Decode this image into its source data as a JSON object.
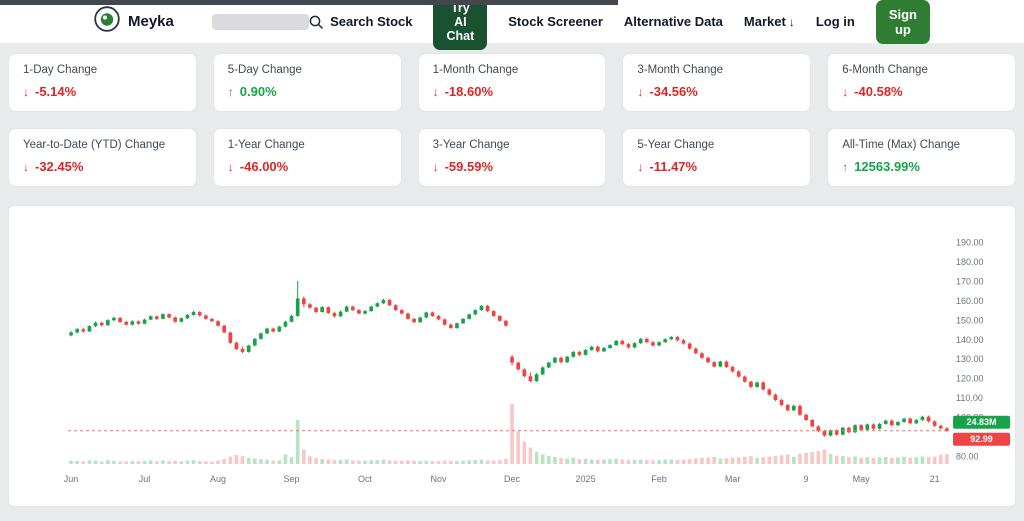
{
  "nav": {
    "brand": "Meyka",
    "search_label": "Search Stock",
    "try_ai_chat": "Try AI Chat",
    "links": [
      "Stock Screener",
      "Alternative Data"
    ],
    "market": "Market",
    "market_arrow": "↓",
    "login": "Log in",
    "signup": "Sign up"
  },
  "stats": {
    "row1": [
      {
        "label": "1-Day Change",
        "arrow": "↓",
        "value": "-5.14%",
        "direction": "down"
      },
      {
        "label": "5-Day Change",
        "arrow": "↑",
        "value": "0.90%",
        "direction": "up"
      },
      {
        "label": "1-Month Change",
        "arrow": "↓",
        "value": "-18.60%",
        "direction": "down"
      },
      {
        "label": "3-Month Change",
        "arrow": "↓",
        "value": "-34.56%",
        "direction": "down"
      },
      {
        "label": "6-Month Change",
        "arrow": "↓",
        "value": "-40.58%",
        "direction": "down"
      }
    ],
    "row2": [
      {
        "label": "Year-to-Date (YTD) Change",
        "arrow": "↓",
        "value": "-32.45%",
        "direction": "down"
      },
      {
        "label": "1-Year Change",
        "arrow": "↓",
        "value": "-46.00%",
        "direction": "down"
      },
      {
        "label": "3-Year Change",
        "arrow": "↓",
        "value": "-59.59%",
        "direction": "down"
      },
      {
        "label": "5-Year Change",
        "arrow": "↓",
        "value": "-11.47%",
        "direction": "down"
      },
      {
        "label": "All-Time (Max) Change",
        "arrow": "↑",
        "value": "12563.99%",
        "direction": "up"
      }
    ]
  },
  "colors": {
    "up": "#16a34a",
    "down_text": "#dc2626",
    "down_candle": "#ef4444",
    "chat_button": "#1a5130",
    "signup_button": "#2e7d32"
  },
  "chart_data": {
    "type": "candlestick",
    "title": "",
    "price_label": "92.99",
    "volume_label": "24.83M",
    "up_color": "#16a34a",
    "down_color": "#ef4444",
    "y_ticks": [
      190,
      180,
      170,
      160,
      150,
      140,
      130,
      120,
      110,
      100,
      90,
      80
    ],
    "x_ticks": [
      {
        "label": "Jun",
        "i": 0
      },
      {
        "label": "Jul",
        "i": 12
      },
      {
        "label": "Aug",
        "i": 24
      },
      {
        "label": "Sep",
        "i": 36
      },
      {
        "label": "Oct",
        "i": 48
      },
      {
        "label": "Nov",
        "i": 60
      },
      {
        "label": "Dec",
        "i": 72
      },
      {
        "label": "2025",
        "i": 84
      },
      {
        "label": "Feb",
        "i": 96
      },
      {
        "label": "Mar",
        "i": 108
      },
      {
        "label": "9",
        "i": 120
      },
      {
        "label": "May",
        "i": 129
      },
      {
        "label": "21",
        "i": 141
      }
    ],
    "candles": [
      [
        142.0,
        144.2,
        141.5,
        143.5,
        8.2
      ],
      [
        143.5,
        145.9,
        143.0,
        145.2,
        7.5
      ],
      [
        145.2,
        145.8,
        143.4,
        144.0,
        6.8
      ],
      [
        144.0,
        147.3,
        143.8,
        146.8,
        9.1
      ],
      [
        146.8,
        149.1,
        146.2,
        148.5,
        8.4
      ],
      [
        148.5,
        149.0,
        146.6,
        147.2,
        6.2
      ],
      [
        147.2,
        150.3,
        146.9,
        149.8,
        9.6
      ],
      [
        149.8,
        151.6,
        149.2,
        151.0,
        8.0
      ],
      [
        151.0,
        151.5,
        148.4,
        148.9,
        6.9
      ],
      [
        148.9,
        149.6,
        146.9,
        147.5,
        6.1
      ],
      [
        147.5,
        149.8,
        147.1,
        149.2,
        7.3
      ],
      [
        149.2,
        149.7,
        147.5,
        148.0,
        6.6
      ],
      [
        148.0,
        150.6,
        147.7,
        150.1,
        7.8
      ],
      [
        150.1,
        152.3,
        149.8,
        151.8,
        8.9
      ],
      [
        151.8,
        152.2,
        149.9,
        150.5,
        6.7
      ],
      [
        150.5,
        153.4,
        150.2,
        152.9,
        9.4
      ],
      [
        152.9,
        153.3,
        150.7,
        151.2,
        7.2
      ],
      [
        151.2,
        151.7,
        148.5,
        149.0,
        8.1
      ],
      [
        149.0,
        151.3,
        148.6,
        150.8,
        7.0
      ],
      [
        150.8,
        153.0,
        150.4,
        152.5,
        8.6
      ],
      [
        152.5,
        154.6,
        152.1,
        154.0,
        9.8
      ],
      [
        154.0,
        154.4,
        151.7,
        152.2,
        7.7
      ],
      [
        152.2,
        152.8,
        150.1,
        150.5,
        6.4
      ],
      [
        150.5,
        151.0,
        148.8,
        149.3,
        6.0
      ],
      [
        149.3,
        149.8,
        146.5,
        147.0,
        8.8
      ],
      [
        147.0,
        147.5,
        143.0,
        143.5,
        12.4
      ],
      [
        143.5,
        144.0,
        137.6,
        138.2,
        18.6
      ],
      [
        138.2,
        138.8,
        134.4,
        135.0,
        22.5
      ],
      [
        135.0,
        136.2,
        132.8,
        133.5,
        19.8
      ],
      [
        133.5,
        137.2,
        133.1,
        136.8,
        15.2
      ],
      [
        136.8,
        140.7,
        136.4,
        140.2,
        13.6
      ],
      [
        140.2,
        143.5,
        139.8,
        143.0,
        11.8
      ],
      [
        143.0,
        146.0,
        142.6,
        145.5,
        10.9
      ],
      [
        145.5,
        146.0,
        143.5,
        144.0,
        8.3
      ],
      [
        144.0,
        147.0,
        143.7,
        146.5,
        9.2
      ],
      [
        146.5,
        149.5,
        146.1,
        149.0,
        24.0
      ],
      [
        149.0,
        152.6,
        148.7,
        152.0,
        17.5
      ],
      [
        152.0,
        170.0,
        151.5,
        161.0,
        110.0
      ],
      [
        161.0,
        162.0,
        156.4,
        158.0,
        35.6
      ],
      [
        158.0,
        158.6,
        155.6,
        156.2,
        19.4
      ],
      [
        156.2,
        156.8,
        153.4,
        154.0,
        14.8
      ],
      [
        154.0,
        157.1,
        153.7,
        156.5,
        12.3
      ],
      [
        156.5,
        157.0,
        153.0,
        153.5,
        11.2
      ],
      [
        153.5,
        154.1,
        151.2,
        151.8,
        9.7
      ],
      [
        151.8,
        154.8,
        151.4,
        154.2,
        10.5
      ],
      [
        154.2,
        157.4,
        153.9,
        156.8,
        11.4
      ],
      [
        156.8,
        157.3,
        154.5,
        155.0,
        8.9
      ],
      [
        155.0,
        155.6,
        152.8,
        153.2,
        8.1
      ],
      [
        153.2,
        155.1,
        152.8,
        154.5,
        8.6
      ],
      [
        154.5,
        157.3,
        154.1,
        156.8,
        9.5
      ],
      [
        156.8,
        159.1,
        156.4,
        158.5,
        10.2
      ],
      [
        158.5,
        160.8,
        158.1,
        160.2,
        11.1
      ],
      [
        160.2,
        160.7,
        157.0,
        157.5,
        9.2
      ],
      [
        157.5,
        158.0,
        154.5,
        155.0,
        8.4
      ],
      [
        155.0,
        155.6,
        152.7,
        153.2,
        7.6
      ],
      [
        153.2,
        153.8,
        150.0,
        150.5,
        8.9
      ],
      [
        150.5,
        151.1,
        148.3,
        148.8,
        8.0
      ],
      [
        148.8,
        151.7,
        148.4,
        151.2,
        7.2
      ],
      [
        151.2,
        154.2,
        150.8,
        153.8,
        8.3
      ],
      [
        153.8,
        154.3,
        151.5,
        152.0,
        6.9
      ],
      [
        152.0,
        152.6,
        149.7,
        150.2,
        7.7
      ],
      [
        150.2,
        150.8,
        147.0,
        147.5,
        8.6
      ],
      [
        147.5,
        148.1,
        145.3,
        145.8,
        8.0
      ],
      [
        145.8,
        148.6,
        145.4,
        148.2,
        7.3
      ],
      [
        148.2,
        150.9,
        147.8,
        150.5,
        8.2
      ],
      [
        150.5,
        153.2,
        150.1,
        152.8,
        9.1
      ],
      [
        152.8,
        155.4,
        152.4,
        155.0,
        10.0
      ],
      [
        155.0,
        157.6,
        154.6,
        157.2,
        10.8
      ],
      [
        157.2,
        157.7,
        154.0,
        154.5,
        8.9
      ],
      [
        154.5,
        155.0,
        151.5,
        152.0,
        8.1
      ],
      [
        152.0,
        152.5,
        149.0,
        149.5,
        9.7
      ],
      [
        149.5,
        150.0,
        146.5,
        147.0,
        13.2
      ],
      [
        131.0,
        132.0,
        126.5,
        128.0,
        150.0
      ],
      [
        128.0,
        128.6,
        123.9,
        124.5,
        82.0
      ],
      [
        124.5,
        125.1,
        120.4,
        121.0,
        56.0
      ],
      [
        121.0,
        123.0,
        117.9,
        118.5,
        41.0
      ],
      [
        118.5,
        122.6,
        118.1,
        122.0,
        30.5
      ],
      [
        122.0,
        126.1,
        121.6,
        125.5,
        24.2
      ],
      [
        125.5,
        128.5,
        125.1,
        128.0,
        20.1
      ],
      [
        128.0,
        131.0,
        127.6,
        130.5,
        17.5
      ],
      [
        130.5,
        131.1,
        127.6,
        128.2,
        14.9
      ],
      [
        128.2,
        131.5,
        127.8,
        131.0,
        13.6
      ],
      [
        131.0,
        134.0,
        130.6,
        133.5,
        15.8
      ],
      [
        133.5,
        134.1,
        131.4,
        132.0,
        12.1
      ],
      [
        132.0,
        135.0,
        131.6,
        134.5,
        12.9
      ],
      [
        134.5,
        136.7,
        134.1,
        136.2,
        11.7
      ],
      [
        136.2,
        136.8,
        133.2,
        133.8,
        10.4
      ],
      [
        133.8,
        136.0,
        133.4,
        135.5,
        11.2
      ],
      [
        135.5,
        137.5,
        135.1,
        137.0,
        12.0
      ],
      [
        137.0,
        139.7,
        136.6,
        139.2,
        13.1
      ],
      [
        139.2,
        139.8,
        136.9,
        137.5,
        10.9
      ],
      [
        137.5,
        138.1,
        135.2,
        135.8,
        9.8
      ],
      [
        135.8,
        138.5,
        135.4,
        138.0,
        10.6
      ],
      [
        138.0,
        140.7,
        137.6,
        140.2,
        11.5
      ],
      [
        140.2,
        140.8,
        137.9,
        138.5,
        9.9
      ],
      [
        138.5,
        139.1,
        136.2,
        136.8,
        9.0
      ],
      [
        136.8,
        139.0,
        136.4,
        138.5,
        10.1
      ],
      [
        138.5,
        140.5,
        138.1,
        140.0,
        10.9
      ],
      [
        140.0,
        141.7,
        139.6,
        141.2,
        11.8
      ],
      [
        141.2,
        141.8,
        138.9,
        139.5,
        10.2
      ],
      [
        139.5,
        140.1,
        137.2,
        137.8,
        11.0
      ],
      [
        137.8,
        138.4,
        134.6,
        135.2,
        12.4
      ],
      [
        135.2,
        135.8,
        132.2,
        132.8,
        13.7
      ],
      [
        132.8,
        133.4,
        129.9,
        130.5,
        14.9
      ],
      [
        130.5,
        131.1,
        127.6,
        128.2,
        16.2
      ],
      [
        128.2,
        128.8,
        125.4,
        126.0,
        17.6
      ],
      [
        126.0,
        129.0,
        125.6,
        128.5,
        13.4
      ],
      [
        128.5,
        129.1,
        125.2,
        125.8,
        14.5
      ],
      [
        125.8,
        126.4,
        122.9,
        123.5,
        15.7
      ],
      [
        123.5,
        124.1,
        120.2,
        120.8,
        16.9
      ],
      [
        120.8,
        121.4,
        117.6,
        118.2,
        18.2
      ],
      [
        118.2,
        118.8,
        114.9,
        115.5,
        19.6
      ],
      [
        115.5,
        118.3,
        115.1,
        117.8,
        15.4
      ],
      [
        117.8,
        118.4,
        113.6,
        114.2,
        17.3
      ],
      [
        114.2,
        114.8,
        110.9,
        111.5,
        18.7
      ],
      [
        111.5,
        112.1,
        108.2,
        108.8,
        20.2
      ],
      [
        108.8,
        109.4,
        105.6,
        106.2,
        21.8
      ],
      [
        106.2,
        106.8,
        102.9,
        103.5,
        23.5
      ],
      [
        103.5,
        106.3,
        103.1,
        105.8,
        17.9
      ],
      [
        105.8,
        106.4,
        100.6,
        101.2,
        25.6
      ],
      [
        101.2,
        101.8,
        97.9,
        98.5,
        27.8
      ],
      [
        98.5,
        99.1,
        94.6,
        95.2,
        29.9
      ],
      [
        95.2,
        95.8,
        92.2,
        92.8,
        32.4
      ],
      [
        92.8,
        93.4,
        89.9,
        90.5,
        36.5
      ],
      [
        90.5,
        93.7,
        90.1,
        93.2,
        24.6
      ],
      [
        93.2,
        93.8,
        90.4,
        91.0,
        21.0
      ],
      [
        91.0,
        95.0,
        90.6,
        94.5,
        19.8
      ],
      [
        94.5,
        95.1,
        91.6,
        92.2,
        17.2
      ],
      [
        92.2,
        96.3,
        91.8,
        95.8,
        18.6
      ],
      [
        95.8,
        96.4,
        92.9,
        93.5,
        16.1
      ],
      [
        93.5,
        96.7,
        93.1,
        96.2,
        16.9
      ],
      [
        96.2,
        96.8,
        93.4,
        94.0,
        15.2
      ],
      [
        94.0,
        97.0,
        93.6,
        96.5,
        16.4
      ],
      [
        96.5,
        98.7,
        96.1,
        98.2,
        17.5
      ],
      [
        98.2,
        98.8,
        95.2,
        95.8,
        15.5
      ],
      [
        95.8,
        98.0,
        95.4,
        97.5,
        16.6
      ],
      [
        97.5,
        99.7,
        97.1,
        99.2,
        18.1
      ],
      [
        99.2,
        99.8,
        96.2,
        96.8,
        15.8
      ],
      [
        96.8,
        99.0,
        96.4,
        98.5,
        16.9
      ],
      [
        98.5,
        100.7,
        98.1,
        100.2,
        19.0
      ],
      [
        100.2,
        100.8,
        97.2,
        97.8,
        17.2
      ],
      [
        97.8,
        98.4,
        94.9,
        95.5,
        18.4
      ],
      [
        95.5,
        96.1,
        93.6,
        94.2,
        23.6
      ],
      [
        94.2,
        94.8,
        92.4,
        92.99,
        24.83
      ]
    ]
  }
}
